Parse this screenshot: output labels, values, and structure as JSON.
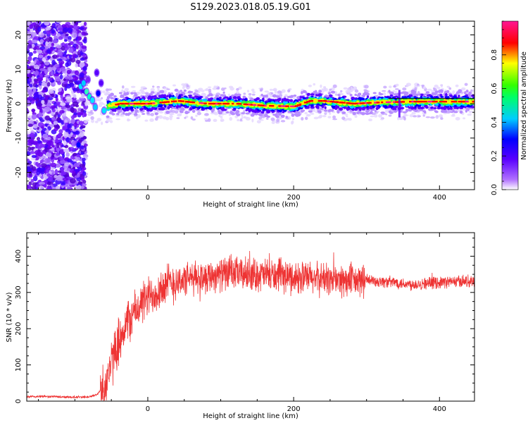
{
  "title": "S129.2023.018.05.19.G01",
  "chart_data": [
    {
      "type": "heatmap",
      "xlabel": "Height of straight line (km)",
      "ylabel": "Frequency (Hz)",
      "xlim": [
        -166,
        448
      ],
      "ylim": [
        -25,
        24
      ],
      "xticks": [
        0,
        200,
        400
      ],
      "yticks": [
        -20,
        -10,
        0,
        10,
        20
      ],
      "grid": false,
      "colorbar": {
        "label": "Normalized spectral amplitude",
        "range": [
          0,
          1
        ],
        "ticks": [
          0.0,
          0.2,
          0.4,
          0.6,
          0.8
        ],
        "colormap": "white-purple-blue-cyan-green-yellow-red-magenta",
        "colors": [
          "#ffffff",
          "#8a00ff",
          "#0000ff",
          "#00e5ff",
          "#00ff00",
          "#ffff00",
          "#ff0000",
          "#ff1493"
        ]
      },
      "ridge": {
        "description": "dominant tone near 0 Hz",
        "x": [
          -60,
          -40,
          0,
          40,
          80,
          120,
          160,
          200,
          220,
          240,
          280,
          320,
          360,
          400,
          448
        ],
        "freq": [
          -1.0,
          0.0,
          0.0,
          0.8,
          0.0,
          0.0,
          -0.6,
          -0.8,
          0.8,
          0.8,
          0.0,
          0.4,
          0.6,
          0.6,
          0.6
        ]
      },
      "noise_region_x": [
        -166,
        -85
      ]
    },
    {
      "type": "line",
      "xlabel": "Height of straight line (km)",
      "ylabel": "SNR (10 * v/v)",
      "xlim": [
        -166,
        448
      ],
      "ylim": [
        0,
        465
      ],
      "xticks": [
        0,
        200,
        400
      ],
      "yticks": [
        0,
        100,
        200,
        300,
        400
      ],
      "grid": false,
      "line_color": "#ee3333",
      "series": [
        {
          "x": [
            -166,
            -140,
            -120,
            -100,
            -80,
            -70,
            -60,
            -50,
            -40,
            -30,
            -20,
            -10,
            0,
            10,
            20,
            30,
            40,
            60,
            80,
            100,
            120,
            140,
            160,
            180,
            200,
            220,
            240,
            260,
            280,
            300,
            320,
            340,
            360,
            380,
            400,
            420,
            448
          ],
          "values": [
            12,
            13,
            12,
            11,
            12,
            18,
            40,
            100,
            170,
            210,
            240,
            265,
            285,
            300,
            315,
            325,
            330,
            338,
            345,
            350,
            352,
            350,
            348,
            345,
            342,
            340,
            338,
            335,
            330,
            333,
            330,
            328,
            322,
            325,
            328,
            330,
            332
          ]
        }
      ]
    }
  ]
}
